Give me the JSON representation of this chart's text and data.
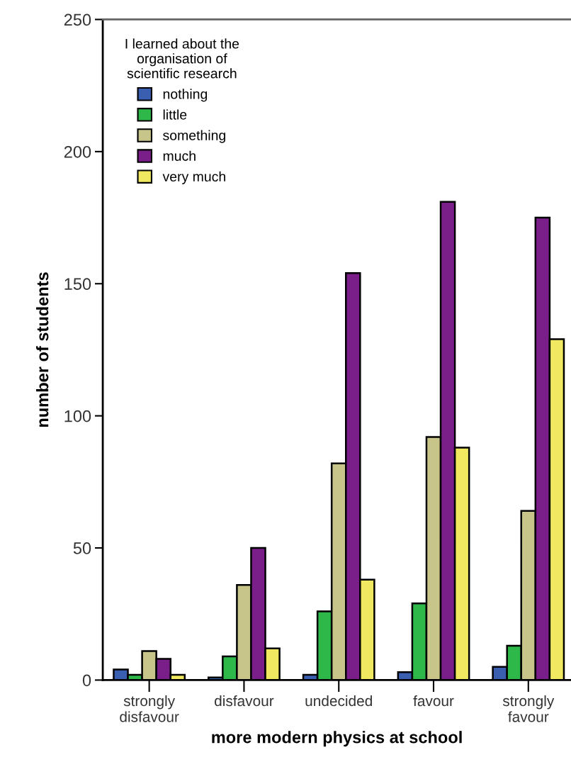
{
  "chart_data": {
    "type": "bar",
    "xlabel": "more modern physics at school",
    "ylabel": "number of students",
    "legend_title": "I learned about the\norganisation of\nscientific research",
    "categories": [
      "strongly\ndisfavour",
      "disfavour",
      "undecided",
      "favour",
      "strongly\nfavour"
    ],
    "series": [
      {
        "name": "nothing",
        "color": "#3a5fb0",
        "values": [
          4,
          1,
          2,
          3,
          5
        ]
      },
      {
        "name": "little",
        "color": "#2eb84a",
        "values": [
          2,
          9,
          26,
          29,
          13
        ]
      },
      {
        "name": "something",
        "color": "#c8c58a",
        "values": [
          11,
          36,
          82,
          92,
          64
        ]
      },
      {
        "name": "much",
        "color": "#7a1f8a",
        "values": [
          8,
          50,
          154,
          181,
          175
        ]
      },
      {
        "name": "very much",
        "color": "#f0e860",
        "values": [
          2,
          12,
          38,
          88,
          129
        ]
      }
    ],
    "ylim": [
      0,
      250
    ],
    "yticks": [
      0,
      50,
      100,
      150,
      200,
      250
    ],
    "grid": false,
    "legend": "top left"
  }
}
